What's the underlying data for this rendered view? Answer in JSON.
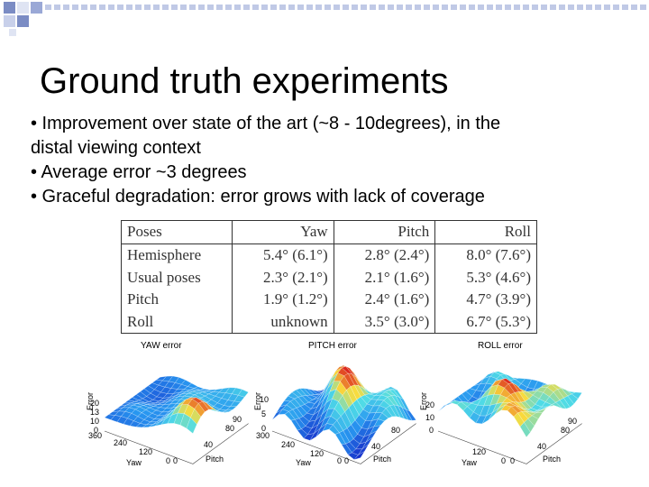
{
  "slide": {
    "title": "Ground truth experiments",
    "bullets": [
      "• Improvement over state of the art (~8 - 10degrees), in the",
      "distal viewing context",
      "• Average error ~3 degrees",
      "• Graceful degradation: error grows with lack of coverage"
    ]
  },
  "table": {
    "headers": [
      "Poses",
      "Yaw",
      "Pitch",
      "Roll"
    ],
    "rows": [
      [
        "Hemisphere",
        "5.4° (6.1°)",
        "2.8° (2.4°)",
        "8.0° (7.6°)"
      ],
      [
        "Usual poses",
        "2.3° (2.1°)",
        "2.1° (1.6°)",
        "5.3° (4.6°)"
      ],
      [
        "Pitch",
        "1.9° (1.2°)",
        "2.4° (1.6°)",
        "4.7° (3.9°)"
      ],
      [
        "Roll",
        "unknown",
        "3.5° (3.0°)",
        "6.7° (5.3°)"
      ]
    ]
  },
  "plots": [
    {
      "title": "YAW error",
      "z_label": "Error",
      "z_ticks": [
        "20",
        "13",
        "10",
        "0"
      ],
      "x_label": "Yaw",
      "x_ticks": [
        "360",
        "240",
        "120",
        "0"
      ],
      "y_label": "Pitch",
      "y_ticks": [
        "0",
        "40",
        "80",
        "90"
      ]
    },
    {
      "title": "PITCH error",
      "z_label": "Error",
      "z_ticks": [
        "10",
        "5",
        "0"
      ],
      "x_label": "Yaw",
      "x_ticks": [
        "300",
        "240",
        "120",
        "0"
      ],
      "y_label": "Pitch",
      "y_ticks": [
        "0",
        "40",
        "80"
      ]
    },
    {
      "title": "ROLL error",
      "z_label": "Error",
      "z_ticks": [
        "20",
        "10",
        "0"
      ],
      "x_label": "Yaw",
      "x_ticks": [
        "120",
        "0"
      ],
      "y_label": "Pitch",
      "y_ticks": [
        "0",
        "40",
        "80",
        "90"
      ]
    }
  ],
  "colors": {
    "deco_dark": "#7b8cc4",
    "deco_light": "#c8d0ea"
  }
}
